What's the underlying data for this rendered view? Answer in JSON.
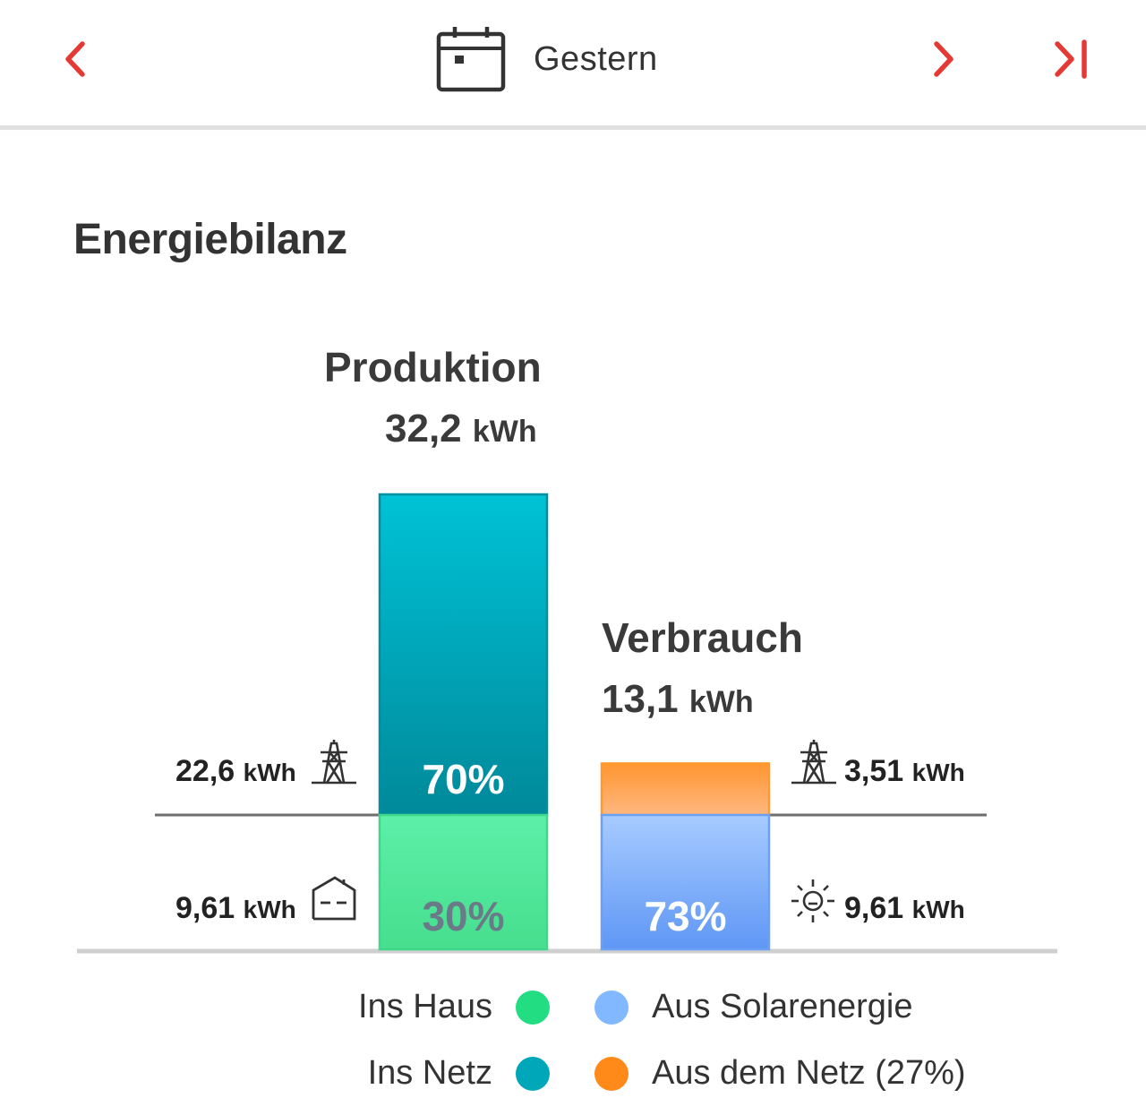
{
  "header": {
    "date_label": "Gestern",
    "accent_color": "#e53935",
    "icons": [
      "chevron-left-icon",
      "calendar-icon",
      "chevron-right-icon",
      "skip-to-end-icon"
    ]
  },
  "section": {
    "title": "Energiebilanz"
  },
  "chart_data": {
    "type": "bar",
    "stacked": true,
    "unit": "kWh",
    "bars": [
      {
        "name": "Produktion",
        "total": "32,2",
        "total_value": 32.2,
        "segments": [
          {
            "label": "Ins Netz",
            "value": 22.6,
            "value_label": "22,6",
            "percent": "70%",
            "color": "#00acc1",
            "icon": "power-tower-icon"
          },
          {
            "label": "Ins Haus",
            "value": 9.61,
            "value_label": "9,61",
            "percent": "30%",
            "color": "#4ee49a",
            "icon": "house-icon"
          }
        ]
      },
      {
        "name": "Verbrauch",
        "total": "13,1",
        "total_value": 13.1,
        "segments": [
          {
            "label": "Aus dem Netz (27%)",
            "value": 3.51,
            "value_label": "3,51",
            "percent": "",
            "color": "#ff9838",
            "icon": "power-tower-icon"
          },
          {
            "label": "Aus Solarenergie",
            "value": 9.61,
            "value_label": "9,61",
            "percent": "73%",
            "color": "#7ab0ff",
            "icon": "sun-icon"
          }
        ]
      }
    ],
    "legend": [
      {
        "label": "Ins Haus",
        "color": "#22dd82"
      },
      {
        "label": "Aus Solarenergie",
        "color": "#82b8ff"
      },
      {
        "label": "Ins Netz",
        "color": "#00a7b9"
      },
      {
        "label": "Aus dem Netz (27%)",
        "color": "#ff8a1a"
      }
    ]
  }
}
